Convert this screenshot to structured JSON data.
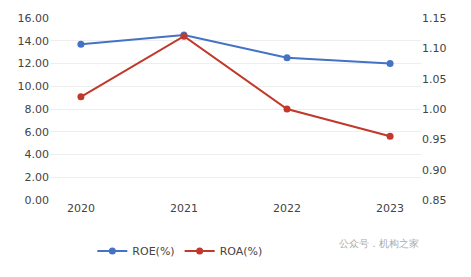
{
  "chart_data": {
    "type": "line",
    "categories": [
      "2020",
      "2021",
      "2022",
      "2023"
    ],
    "series": [
      {
        "name": "ROE(%)",
        "color": "#4472C4",
        "values": [
          13.7,
          14.5,
          12.5,
          12.0
        ],
        "marker": "circle",
        "line_style": "solid"
      },
      {
        "name": "ROA(%)",
        "color": "#C0392B",
        "values": [
          1.02,
          1.12,
          1.0,
          0.955
        ],
        "marker": "circle",
        "line_style": "solid",
        "axis": "y2"
      }
    ],
    "ylim": [
      0,
      16
    ],
    "yticks": [
      {
        "value": 0,
        "label": "0.00"
      },
      {
        "value": 2,
        "label": "2.00"
      },
      {
        "value": 4,
        "label": "4.00"
      },
      {
        "value": 6,
        "label": "6.00"
      },
      {
        "value": 8,
        "label": "8.00"
      },
      {
        "value": 10,
        "label": "10.00"
      },
      {
        "value": 12,
        "label": "12.00"
      },
      {
        "value": 14,
        "label": "14.00"
      },
      {
        "value": 16,
        "label": "16.00"
      }
    ],
    "y2lim": [
      0.85,
      1.15
    ],
    "y2ticks": [
      0.85,
      {
        "value": 0.9,
        "label": "0.90"
      },
      0.95,
      {
        "value": 1.0,
        "label": "1.00"
      },
      1.05,
      {
        "value": 1.1,
        "label": "1.10"
      },
      1.15
    ],
    "grid": true,
    "legend": "bottom",
    "annotations": [
      "公众号．机构之家"
    ]
  }
}
